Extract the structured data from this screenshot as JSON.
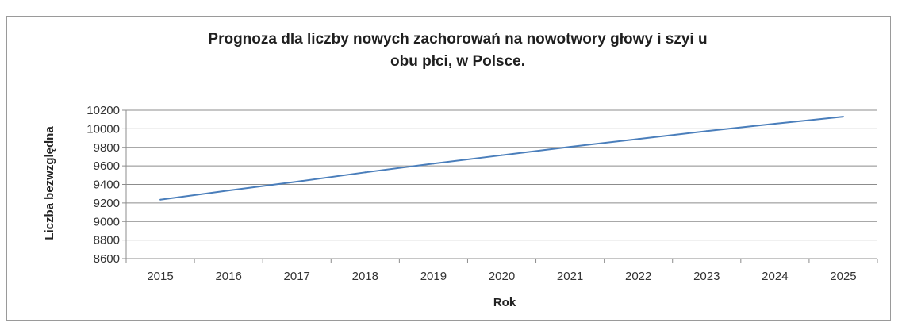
{
  "chart_data": {
    "type": "line",
    "title_lines": [
      "Prognoza dla liczby nowych zachorowań na nowotwory głowy i szyi u",
      "obu płci, w Polsce."
    ],
    "xlabel": "Rok",
    "ylabel": "Liczba bezwzględna",
    "categories": [
      "2015",
      "2016",
      "2017",
      "2018",
      "2019",
      "2020",
      "2021",
      "2022",
      "2023",
      "2024",
      "2025"
    ],
    "series": [
      {
        "values": [
          9235,
          9335,
          9430,
          9530,
          9625,
          9715,
          9805,
          9890,
          9975,
          10055,
          10130
        ],
        "color": "#4a7ebb"
      }
    ],
    "ylim": [
      8600,
      10200
    ],
    "yticks": [
      8600,
      8800,
      9000,
      9200,
      9400,
      9600,
      9800,
      10000,
      10200
    ],
    "ytick_labels": [
      "8600",
      "8800",
      "9000",
      "9200",
      "9400",
      "9600",
      "9800",
      "10000",
      "10200"
    ],
    "grid": true,
    "legend": "none"
  }
}
